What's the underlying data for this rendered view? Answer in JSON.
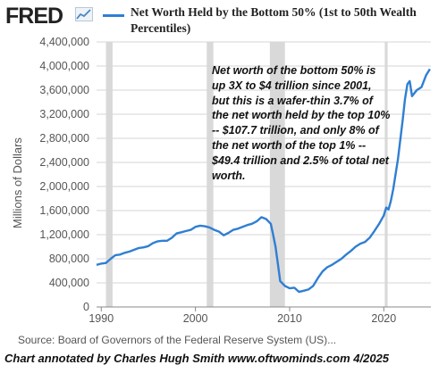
{
  "header": {
    "logo_text": "FRED",
    "logo_icon": "chart-trend-icon",
    "title": "Net Worth Held by the Bottom 50% (1st to 50th Wealth Percentiles)"
  },
  "annotation": {
    "note": "Net worth of the bottom 50% is up 3X to $4 trillion since 2001, but this is a wafer-thin 3.7% of the net worth held by the top 10% -- $107.7 trillion, and only 8% of the net worth of the top 1% -- $49.4 trillion and 2.5% of total net worth.",
    "footer": "Chart annotated by Charles Hugh Smith  www.oftwominds.com  4/2025"
  },
  "source": "Source: Board of Governors of the Federal Reserve System (US)...",
  "colors": {
    "line": "#2f7fd3",
    "recession": "#d9d9d9",
    "grid": "#d6d6d6"
  },
  "chart_data": {
    "type": "line",
    "title": "Net Worth Held by the Bottom 50% (1st to 50th Wealth Percentiles)",
    "ylabel": "Millions of Dollars",
    "xlabel": "",
    "xlim": [
      1989.5,
      2025.0
    ],
    "ylim": [
      0,
      4400000
    ],
    "yticks": [
      0,
      400000,
      800000,
      1200000,
      1600000,
      2000000,
      2400000,
      2800000,
      3200000,
      3600000,
      4000000,
      4400000
    ],
    "ytick_labels": [
      "0",
      "400,000",
      "800,000",
      "1,200,000",
      "1,600,000",
      "2,000,000",
      "2,400,000",
      "2,800,000",
      "3,200,000",
      "3,600,000",
      "4,000,000",
      "4,400,000"
    ],
    "xticks": [
      1990,
      2000,
      2010,
      2020
    ],
    "xtick_labels": [
      "1990",
      "2000",
      "2010",
      "2020"
    ],
    "grid": true,
    "recessions": [
      [
        1990.5,
        1991.2
      ],
      [
        2001.2,
        2001.9
      ],
      [
        2007.9,
        2009.5
      ],
      [
        2020.1,
        2020.4
      ]
    ],
    "series": [
      {
        "name": "Net Worth Held by the Bottom 50% (1st to 50th Wealth Percentiles)",
        "x": [
          1989.5,
          1990.0,
          1990.5,
          1991.0,
          1991.5,
          1992.0,
          1992.5,
          1993.0,
          1993.5,
          1994.0,
          1994.5,
          1995.0,
          1995.5,
          1996.0,
          1996.5,
          1997.0,
          1997.5,
          1998.0,
          1998.5,
          1999.0,
          1999.5,
          2000.0,
          2000.5,
          2001.0,
          2001.5,
          2002.0,
          2002.5,
          2003.0,
          2003.5,
          2004.0,
          2004.5,
          2005.0,
          2005.5,
          2006.0,
          2006.5,
          2007.0,
          2007.5,
          2008.0,
          2008.25,
          2008.5,
          2008.75,
          2009.0,
          2009.5,
          2010.0,
          2010.5,
          2011.0,
          2011.5,
          2012.0,
          2012.5,
          2013.0,
          2013.5,
          2014.0,
          2014.5,
          2015.0,
          2015.5,
          2016.0,
          2016.5,
          2017.0,
          2017.5,
          2018.0,
          2018.5,
          2019.0,
          2019.5,
          2020.0,
          2020.25,
          2020.5,
          2020.75,
          2021.0,
          2021.5,
          2022.0,
          2022.25,
          2022.5,
          2022.75,
          2023.0,
          2023.5,
          2024.0,
          2024.5,
          2024.9
        ],
        "values": [
          700000,
          720000,
          730000,
          800000,
          860000,
          870000,
          900000,
          920000,
          950000,
          980000,
          990000,
          1010000,
          1060000,
          1090000,
          1100000,
          1100000,
          1150000,
          1220000,
          1240000,
          1260000,
          1280000,
          1330000,
          1350000,
          1340000,
          1320000,
          1280000,
          1250000,
          1190000,
          1230000,
          1280000,
          1300000,
          1330000,
          1360000,
          1380000,
          1420000,
          1490000,
          1460000,
          1380000,
          1200000,
          1000000,
          720000,
          430000,
          350000,
          310000,
          320000,
          250000,
          270000,
          290000,
          350000,
          480000,
          590000,
          660000,
          700000,
          750000,
          800000,
          870000,
          930000,
          1000000,
          1050000,
          1080000,
          1150000,
          1260000,
          1380000,
          1520000,
          1650000,
          1620000,
          1760000,
          1960000,
          2450000,
          3100000,
          3450000,
          3700000,
          3750000,
          3500000,
          3600000,
          3650000,
          3850000,
          3950000
        ]
      }
    ]
  }
}
